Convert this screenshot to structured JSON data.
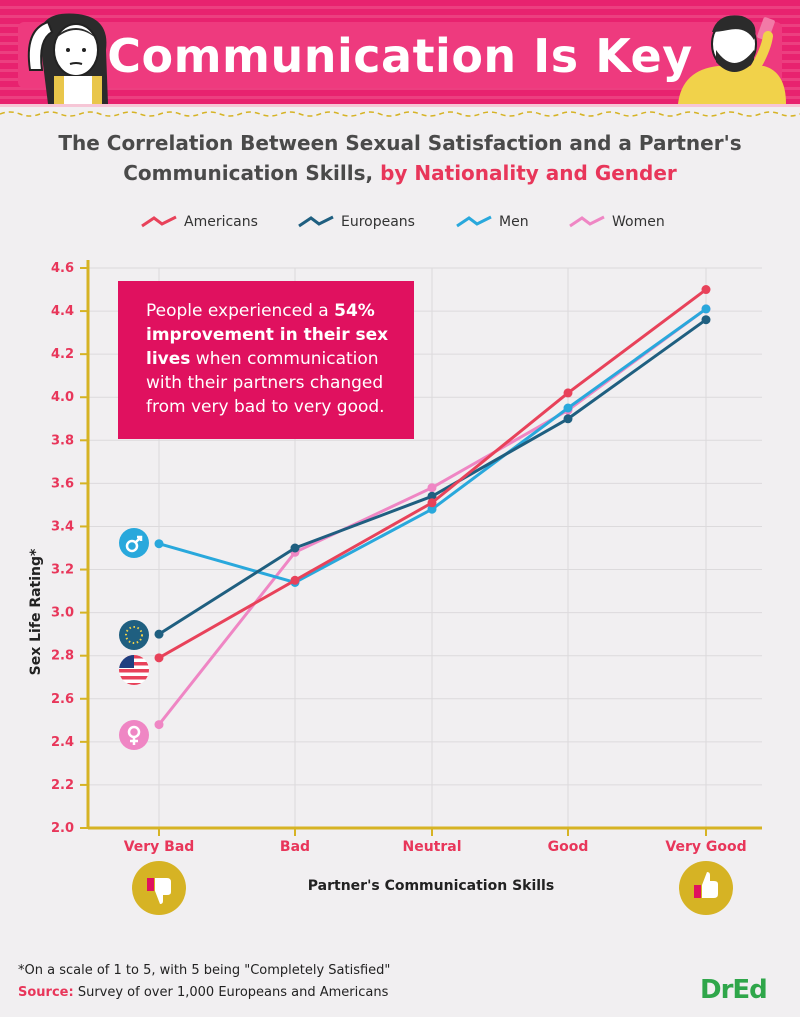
{
  "header": {
    "title": "Communication Is Key",
    "subtitle_line1": "The Correlation Between Sexual Satisfaction and a Partner's",
    "subtitle_line2_plain": "Communication Skills,",
    "subtitle_line2_highlight": "by Nationality and Gender"
  },
  "callout": {
    "pre": "People experienced a ",
    "bold1": "54% improvement in their sex lives",
    "post": " when communication with their partners changed from very bad to very good."
  },
  "footer": {
    "footnote": "*On a scale of 1 to 5, with 5 being \"Completely Satisfied\"",
    "source_label": "Source:",
    "source_text": "Survey of over 1,000 Europeans and Americans",
    "logo": "DrEd"
  },
  "colors": {
    "americans": "#e8425a",
    "europeans": "#1f5f80",
    "men": "#29a8dc",
    "women": "#ef86c4",
    "axis": "#d6b324",
    "accent": "#e0115f"
  },
  "icons": [
    "male-icon",
    "eu-flag-icon",
    "us-flag-icon",
    "female-icon",
    "thumbs-down-icon",
    "thumbs-up-icon"
  ],
  "chart_data": {
    "type": "line",
    "categories": [
      "Very Bad",
      "Bad",
      "Neutral",
      "Good",
      "Very Good"
    ],
    "xlabel": "Partner's Communication Skills",
    "ylabel": "Sex Life Rating*",
    "ylim": [
      2.0,
      4.6
    ],
    "yticks": [
      "2.0",
      "2.2",
      "2.4",
      "2.6",
      "2.8",
      "3.0",
      "3.2",
      "3.4",
      "3.6",
      "3.8",
      "4.0",
      "4.2",
      "4.4",
      "4.6"
    ],
    "grid": true,
    "legend_position": "top",
    "series": [
      {
        "name": "Americans",
        "values": [
          2.79,
          3.15,
          3.51,
          4.02,
          4.5
        ]
      },
      {
        "name": "Europeans",
        "values": [
          2.9,
          3.3,
          3.54,
          3.9,
          4.36
        ]
      },
      {
        "name": "Men",
        "values": [
          3.32,
          3.14,
          3.48,
          3.95,
          4.41
        ]
      },
      {
        "name": "Women",
        "values": [
          2.48,
          3.28,
          3.58,
          3.94,
          4.41
        ]
      }
    ]
  }
}
